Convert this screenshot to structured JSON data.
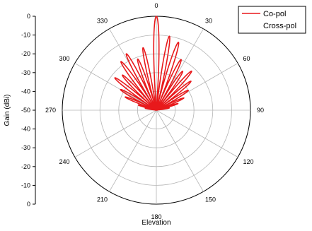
{
  "chart_data": {
    "type": "polar",
    "xlabel": "Elevation",
    "ylabel": "Gain (dBi)",
    "radial_range": [
      -50,
      0
    ],
    "radial_ticks_upper": [
      "0",
      "-10",
      "-20",
      "-30",
      "-40",
      "-50"
    ],
    "radial_ticks_lower": [
      "-40",
      "-30",
      "-20",
      "-10",
      "0"
    ],
    "angle_labels": [
      "0",
      "30",
      "60",
      "90",
      "120",
      "150",
      "180",
      "210",
      "240",
      "270",
      "300",
      "330"
    ],
    "angle_direction": "clockwise",
    "zero_position": "top",
    "grid": true,
    "legend": {
      "position": "top-right",
      "entries": [
        "Co-pol",
        "Cross-pol"
      ]
    },
    "series": [
      {
        "name": "Co-pol",
        "color": "#e8191b",
        "lobes": [
          {
            "angle": -80,
            "width": 3,
            "peak": -44
          },
          {
            "angle": -74,
            "width": 3,
            "peak": -40
          },
          {
            "angle": -67,
            "width": 3.5,
            "peak": -32
          },
          {
            "angle": -60,
            "width": 4,
            "peak": -28
          },
          {
            "angle": -52,
            "width": 4,
            "peak": -22
          },
          {
            "angle": -44,
            "width": 4,
            "peak": -24
          },
          {
            "angle": -36,
            "width": 4,
            "peak": -18
          },
          {
            "angle": -28,
            "width": 4,
            "peak": -16
          },
          {
            "angle": -20,
            "width": 4,
            "peak": -21
          },
          {
            "angle": -12,
            "width": 3.5,
            "peak": -16
          },
          {
            "angle": 0,
            "width": 4.2,
            "peak": 0
          },
          {
            "angle": 10,
            "width": 3.5,
            "peak": -10
          },
          {
            "angle": 18,
            "width": 4,
            "peak": -12
          },
          {
            "angle": 26,
            "width": 4,
            "peak": -20
          },
          {
            "angle": 34,
            "width": 4,
            "peak": -25
          },
          {
            "angle": 42,
            "width": 4,
            "peak": -22
          },
          {
            "angle": 50,
            "width": 4,
            "peak": -26
          },
          {
            "angle": 58,
            "width": 4,
            "peak": -30
          },
          {
            "angle": 66,
            "width": 3.5,
            "peak": -34
          },
          {
            "angle": 73,
            "width": 3,
            "peak": -38
          },
          {
            "angle": 80,
            "width": 3,
            "peak": -43
          }
        ],
        "floor": -50
      },
      {
        "name": "Cross-pol",
        "color": "#ffffff",
        "values": []
      }
    ]
  }
}
